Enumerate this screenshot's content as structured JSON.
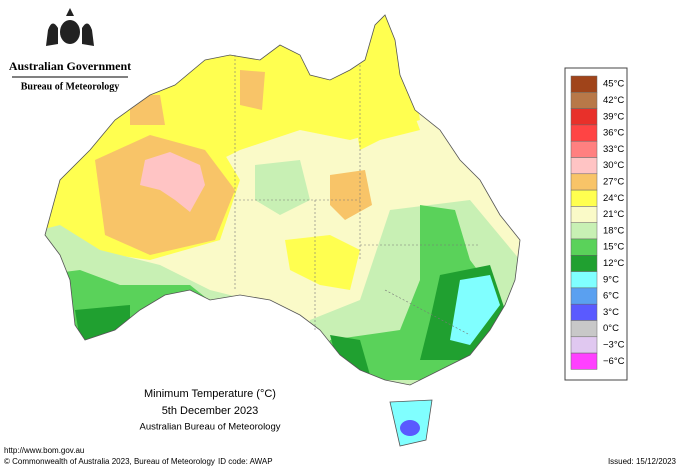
{
  "header": {
    "government": "Australian Government",
    "agency": "Bureau of Meteorology"
  },
  "legend": {
    "items": [
      {
        "label": "45°C",
        "color": "#a0441a"
      },
      {
        "label": "42°C",
        "color": "#b87848"
      },
      {
        "label": "39°C",
        "color": "#e8302a"
      },
      {
        "label": "36°C",
        "color": "#ff4444"
      },
      {
        "label": "33°C",
        "color": "#ff8080"
      },
      {
        "label": "30°C",
        "color": "#ffc4c4"
      },
      {
        "label": "27°C",
        "color": "#f8c468"
      },
      {
        "label": "24°C",
        "color": "#ffff50"
      },
      {
        "label": "21°C",
        "color": "#fafac8"
      },
      {
        "label": "18°C",
        "color": "#c8f0b4"
      },
      {
        "label": "15°C",
        "color": "#5ad25a"
      },
      {
        "label": "12°C",
        "color": "#20a030"
      },
      {
        "label": "9°C",
        "color": "#80ffff"
      },
      {
        "label": "6°C",
        "color": "#5aa0f0"
      },
      {
        "label": "3°C",
        "color": "#5a5aff"
      },
      {
        "label": "0°C",
        "color": "#c8c8c8"
      },
      {
        "label": "−3°C",
        "color": "#e0c8f0"
      },
      {
        "label": "−6°C",
        "color": "#ff40ff"
      }
    ]
  },
  "caption": {
    "title": "Minimum Temperature (°C)",
    "date": "5th December 2023",
    "source": "Australian Bureau of Meteorology"
  },
  "footer": {
    "url": "http://www.bom.gov.au",
    "copyright": "© Commonwealth of Australia 2023, Bureau of Meteorology",
    "id": "ID code: AWAP",
    "issued": "Issued: 15/12/2023"
  }
}
